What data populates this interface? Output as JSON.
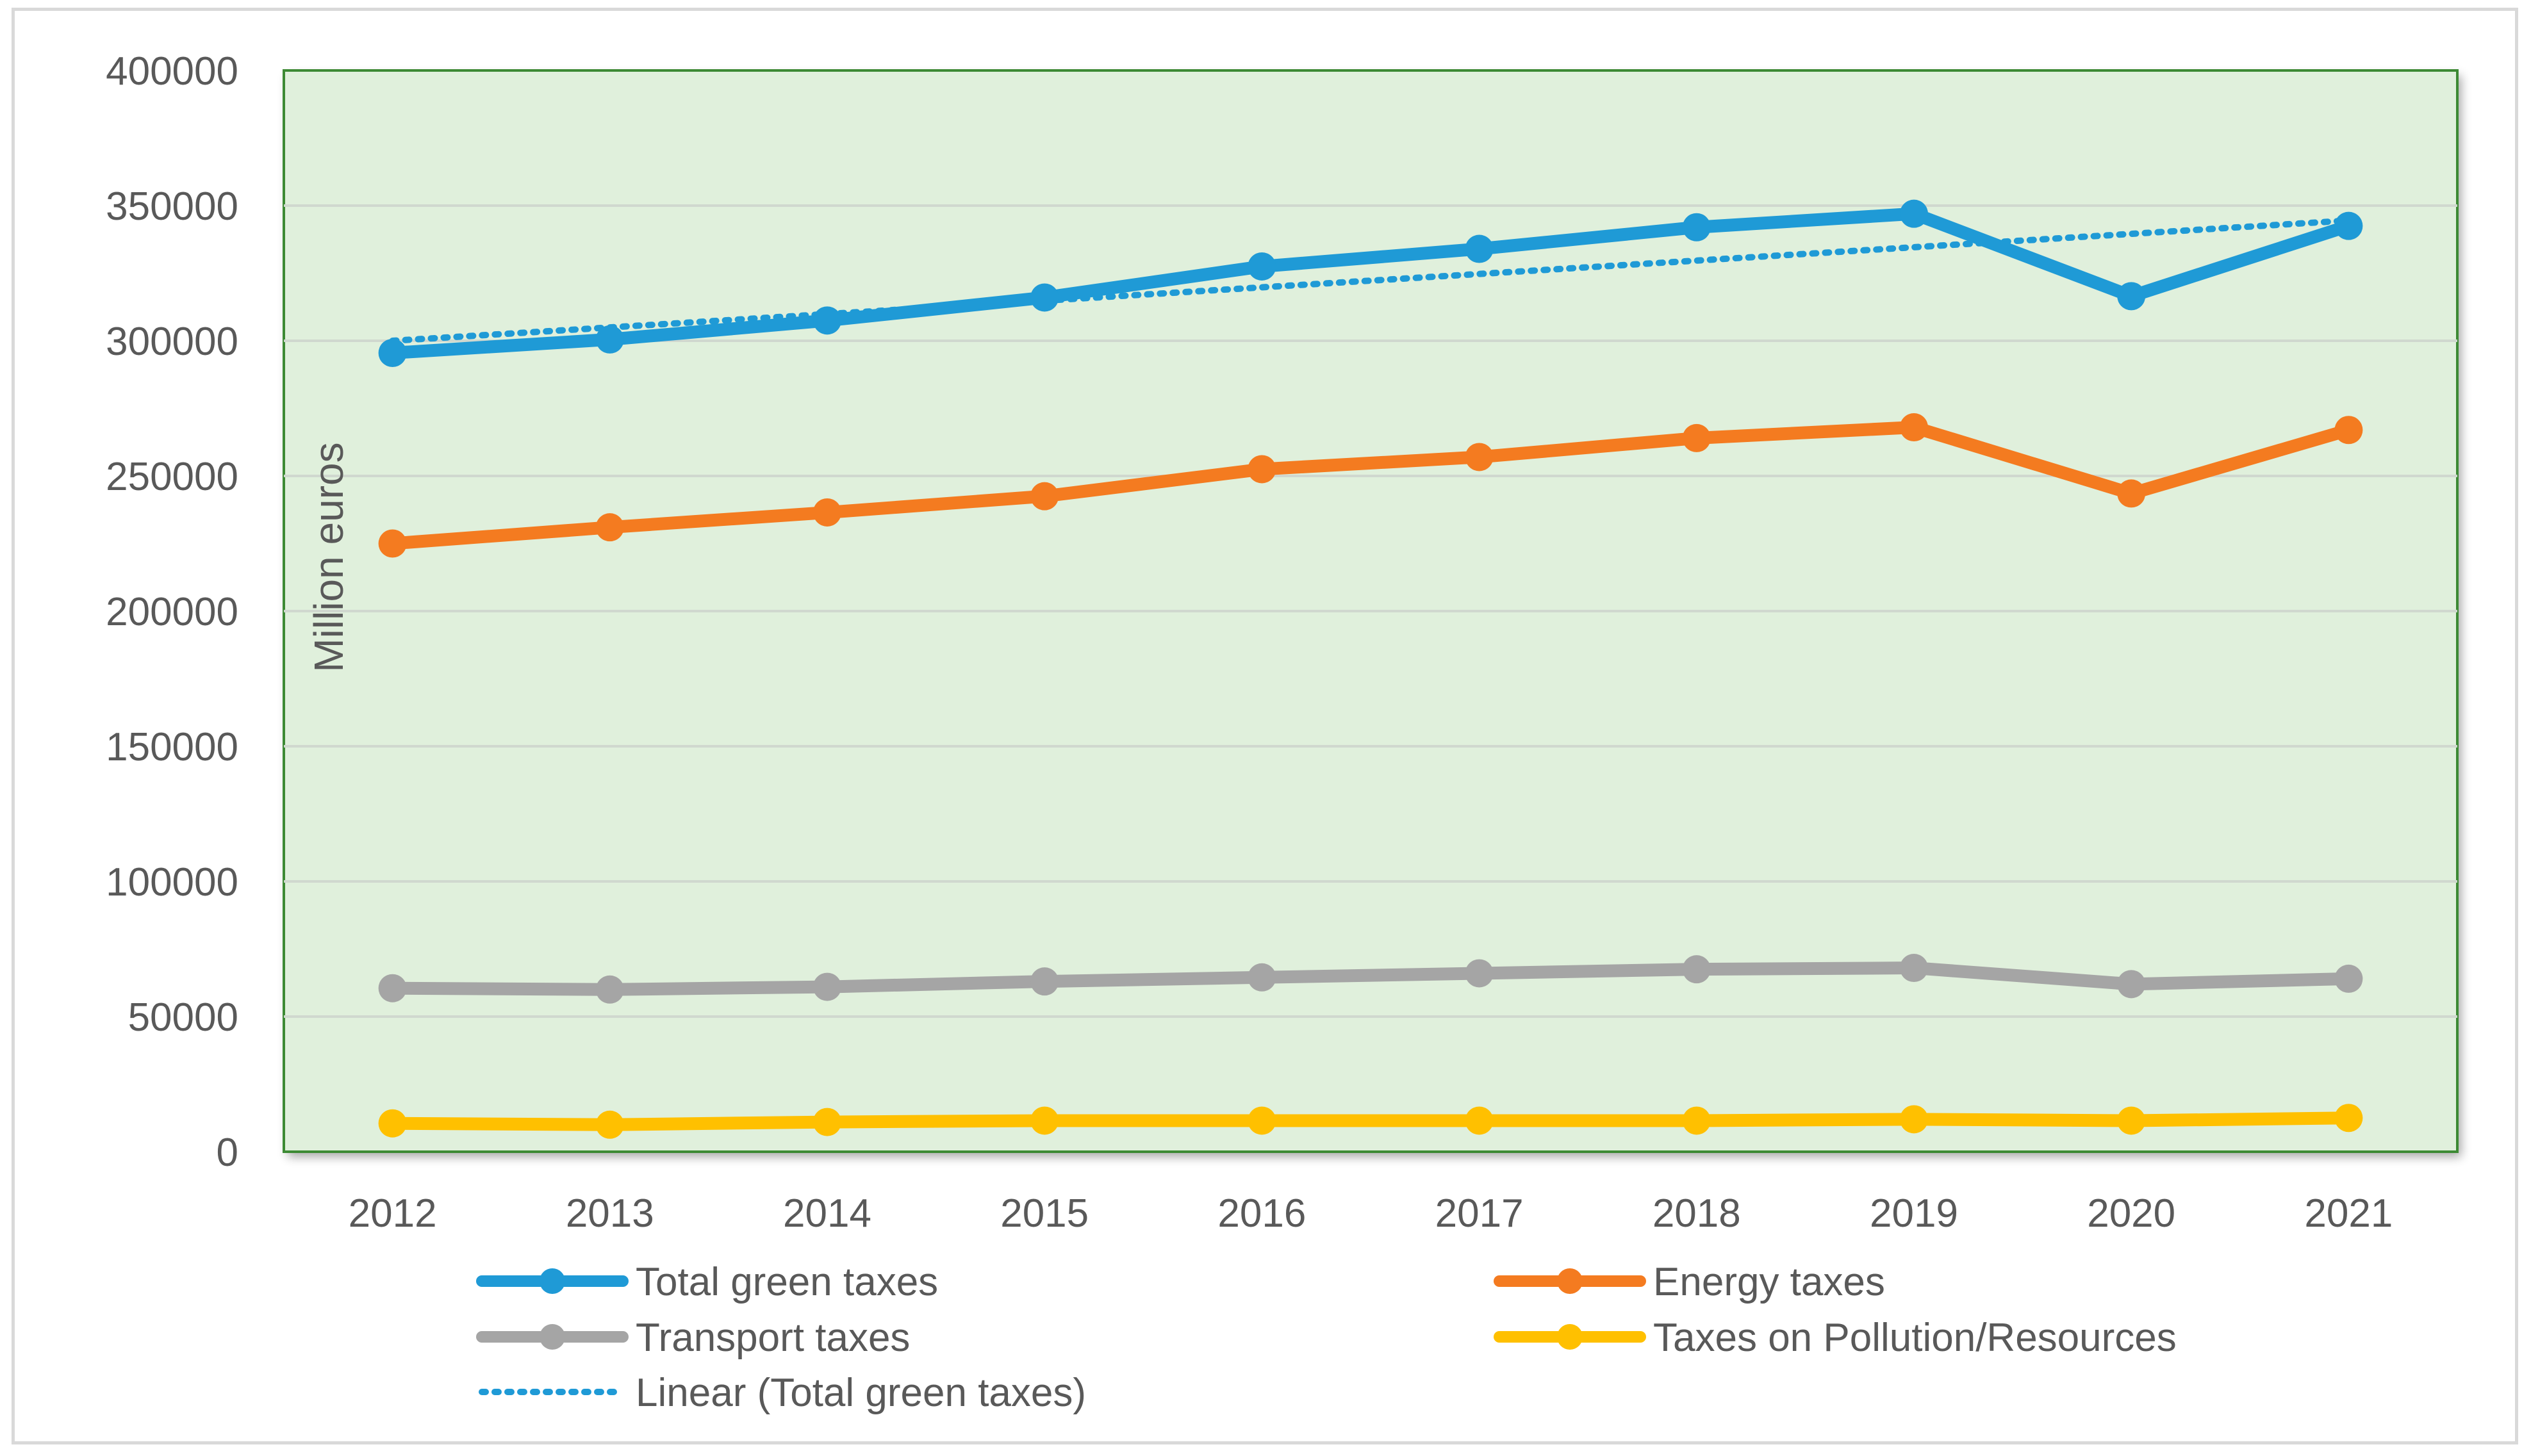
{
  "chart_data": {
    "type": "line",
    "title": "",
    "xlabel": "",
    "ylabel": "Million euros",
    "ylim": [
      0,
      400000
    ],
    "yticks": [
      "0",
      "50000",
      "100000",
      "150000",
      "200000",
      "250000",
      "300000",
      "350000",
      "400000"
    ],
    "categories": [
      "2012",
      "2013",
      "2014",
      "2015",
      "2016",
      "2017",
      "2018",
      "2019",
      "2020",
      "2021"
    ],
    "series": [
      {
        "name": "Total green taxes",
        "color": "#1f9ad6",
        "values": [
          295500,
          300500,
          307500,
          316000,
          327500,
          334000,
          342000,
          347000,
          316500,
          342500
        ]
      },
      {
        "name": "Energy taxes",
        "color": "#f47b20",
        "values": [
          225000,
          231000,
          236500,
          242500,
          252500,
          257000,
          264000,
          268000,
          243500,
          267000
        ]
      },
      {
        "name": "Transport taxes",
        "color": "#a5a5a5",
        "values": [
          60500,
          60000,
          61000,
          63000,
          64500,
          66000,
          67500,
          68000,
          62000,
          64000
        ]
      },
      {
        "name": "Taxes on Pollution/Resources",
        "color": "#ffc000",
        "values": [
          10500,
          10000,
          11000,
          11500,
          11500,
          11500,
          11500,
          12000,
          11500,
          12500
        ]
      }
    ],
    "trendline": {
      "name": "Linear (Total green taxes)",
      "color": "#1f9ad6",
      "start": 300000,
      "end": 344500
    },
    "legend_position": "bottom",
    "grid": true,
    "plot_background": "#e0f0dc",
    "plot_border": "#3d8a34"
  }
}
